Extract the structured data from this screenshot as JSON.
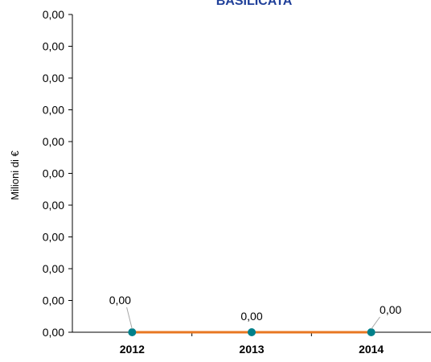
{
  "chart_data": {
    "type": "line",
    "title": "BASILICATA",
    "xlabel": "",
    "ylabel": "Milioni di €",
    "categories": [
      "2012",
      "2013",
      "2014"
    ],
    "series": [
      {
        "values": [
          0.0,
          0.0,
          0.0
        ],
        "data_labels": [
          "0,00",
          "0,00",
          "0,00"
        ],
        "line_color": "#E87722",
        "marker_color": "#00808A"
      }
    ],
    "y_tick_labels": [
      "0,00",
      "0,00",
      "0,00",
      "0,00",
      "0,00",
      "0,00",
      "0,00",
      "0,00",
      "0,00",
      "0,00",
      "0,00"
    ],
    "grid": false,
    "legend": "none",
    "colors": {
      "title": "#1F3F99",
      "axis": "#000000",
      "leader_line": "#A6A6A6"
    }
  }
}
